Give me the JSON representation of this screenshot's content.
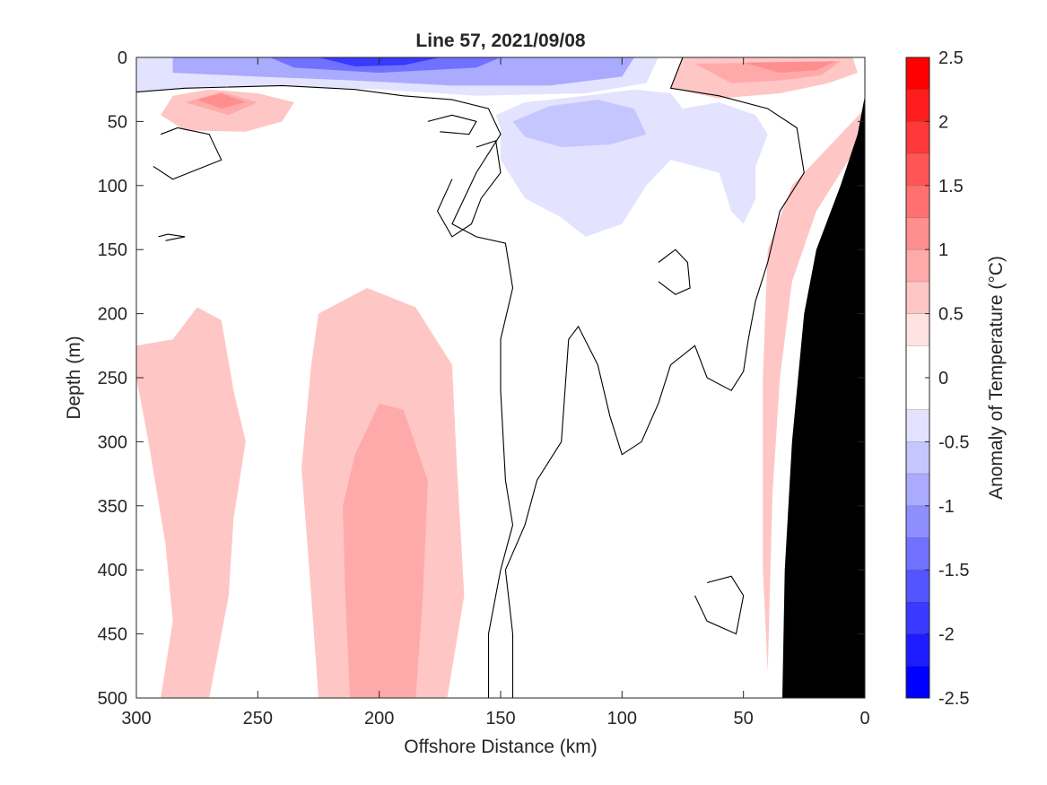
{
  "chart_data": {
    "type": "heatmap",
    "title": "Line 57, 2021/09/08",
    "xlabel": "Offshore Distance (km)",
    "ylabel": "Depth (m)",
    "xlim": [
      300,
      0
    ],
    "ylim": [
      0,
      500
    ],
    "x_reversed": true,
    "y_reversed": true,
    "x_ticks": [
      300,
      250,
      200,
      150,
      100,
      50,
      0
    ],
    "y_ticks": [
      0,
      50,
      100,
      150,
      200,
      250,
      300,
      350,
      400,
      450,
      500
    ],
    "colorbar": {
      "label": "Anomaly of Temperature (°C)",
      "range": [
        -2.5,
        2.5
      ],
      "ticks": [
        2.5,
        2,
        1.5,
        1,
        0.5,
        0,
        -0.5,
        -1,
        -1.5,
        -2,
        -2.5
      ],
      "tick_labels": [
        "2.5",
        "2",
        "1.5",
        "1",
        "0.5",
        "0",
        "-0.5",
        "-1",
        "-1.5",
        "-2",
        "-2.5"
      ],
      "levels": [
        {
          "min": 2.25,
          "max": 2.5,
          "color": "#ff0000"
        },
        {
          "min": 2.0,
          "max": 2.25,
          "color": "#ff1c1c"
        },
        {
          "min": 1.75,
          "max": 2.0,
          "color": "#ff3939"
        },
        {
          "min": 1.5,
          "max": 1.75,
          "color": "#ff5555"
        },
        {
          "min": 1.25,
          "max": 1.5,
          "color": "#ff7171"
        },
        {
          "min": 1.0,
          "max": 1.25,
          "color": "#ff8e8e"
        },
        {
          "min": 0.75,
          "max": 1.0,
          "color": "#ffaaaa"
        },
        {
          "min": 0.5,
          "max": 0.75,
          "color": "#ffc6c6"
        },
        {
          "min": 0.25,
          "max": 0.5,
          "color": "#ffe3e3"
        },
        {
          "min": -0.25,
          "max": 0.25,
          "color": "#ffffff"
        },
        {
          "min": -0.5,
          "max": -0.25,
          "color": "#e3e3ff"
        },
        {
          "min": -0.75,
          "max": -0.5,
          "color": "#c6c6ff"
        },
        {
          "min": -1.0,
          "max": -0.75,
          "color": "#aaaaff"
        },
        {
          "min": -1.25,
          "max": -1.0,
          "color": "#8e8eff"
        },
        {
          "min": -1.5,
          "max": -1.25,
          "color": "#7171ff"
        },
        {
          "min": -1.75,
          "max": -1.5,
          "color": "#5555ff"
        },
        {
          "min": -2.0,
          "max": -1.75,
          "color": "#3939ff"
        },
        {
          "min": -2.25,
          "max": -2.0,
          "color": "#1c1cff"
        },
        {
          "min": -2.5,
          "max": -2.25,
          "color": "#0000ff"
        }
      ]
    },
    "regions": [
      {
        "name": "surface-cold-band",
        "level": -0.5,
        "points": [
          [
            300,
            0
          ],
          [
            85,
            0
          ],
          [
            90,
            20
          ],
          [
            115,
            28
          ],
          [
            160,
            30
          ],
          [
            200,
            25
          ],
          [
            240,
            22
          ],
          [
            280,
            24
          ],
          [
            300,
            27
          ]
        ]
      },
      {
        "name": "surface-cold-band",
        "level": -1.0,
        "points": [
          [
            285,
            0
          ],
          [
            95,
            0
          ],
          [
            100,
            15
          ],
          [
            130,
            22
          ],
          [
            170,
            22
          ],
          [
            210,
            18
          ],
          [
            250,
            15
          ],
          [
            285,
            12
          ]
        ]
      },
      {
        "name": "surface-cold-band",
        "level": -1.5,
        "points": [
          [
            245,
            0
          ],
          [
            150,
            0
          ],
          [
            160,
            8
          ],
          [
            200,
            12
          ],
          [
            235,
            8
          ]
        ]
      },
      {
        "name": "surface-cold-band",
        "level": -2.0,
        "points": [
          [
            225,
            0
          ],
          [
            175,
            0
          ],
          [
            190,
            6
          ],
          [
            210,
            7
          ]
        ]
      },
      {
        "name": "mid-cold-patch",
        "level": -0.5,
        "points": [
          [
            150,
            55
          ],
          [
            152,
            45
          ],
          [
            140,
            35
          ],
          [
            115,
            30
          ],
          [
            95,
            25
          ],
          [
            80,
            28
          ],
          [
            75,
            40
          ],
          [
            60,
            35
          ],
          [
            45,
            45
          ],
          [
            40,
            60
          ],
          [
            45,
            85
          ],
          [
            45,
            110
          ],
          [
            50,
            130
          ],
          [
            55,
            120
          ],
          [
            60,
            90
          ],
          [
            80,
            80
          ],
          [
            90,
            100
          ],
          [
            100,
            130
          ],
          [
            115,
            140
          ],
          [
            125,
            125
          ],
          [
            140,
            110
          ],
          [
            150,
            80
          ]
        ]
      },
      {
        "name": "mid-cold-patch",
        "level": -0.75,
        "points": [
          [
            145,
            50
          ],
          [
            130,
            38
          ],
          [
            110,
            33
          ],
          [
            95,
            40
          ],
          [
            90,
            60
          ],
          [
            105,
            68
          ],
          [
            125,
            70
          ],
          [
            140,
            62
          ]
        ]
      },
      {
        "name": "nearshore-warm-surface",
        "level": 0.5,
        "points": [
          [
            75,
            0
          ],
          [
            5,
            0
          ],
          [
            3,
            12
          ],
          [
            15,
            20
          ],
          [
            35,
            28
          ],
          [
            60,
            32
          ],
          [
            80,
            24
          ]
        ]
      },
      {
        "name": "nearshore-warm-surface",
        "level": 0.75,
        "points": [
          [
            70,
            5
          ],
          [
            10,
            3
          ],
          [
            18,
            14
          ],
          [
            35,
            18
          ],
          [
            55,
            20
          ]
        ]
      },
      {
        "name": "nearshore-warm-surface",
        "level": 1.0,
        "points": [
          [
            50,
            4
          ],
          [
            12,
            3
          ],
          [
            20,
            10
          ],
          [
            35,
            12
          ]
        ]
      },
      {
        "name": "offshore-warm-subsurface",
        "level": 0.5,
        "points": [
          [
            290,
            45
          ],
          [
            285,
            30
          ],
          [
            270,
            25
          ],
          [
            250,
            28
          ],
          [
            235,
            35
          ],
          [
            240,
            50
          ],
          [
            255,
            58
          ],
          [
            280,
            57
          ]
        ]
      },
      {
        "name": "offshore-warm-subsurface",
        "level": 0.75,
        "points": [
          [
            280,
            35
          ],
          [
            265,
            27
          ],
          [
            250,
            35
          ],
          [
            262,
            45
          ]
        ]
      },
      {
        "name": "offshore-warm-subsurface",
        "level": 1.0,
        "points": [
          [
            275,
            33
          ],
          [
            265,
            28
          ],
          [
            255,
            35
          ],
          [
            265,
            40
          ]
        ]
      },
      {
        "name": "deep-warm-column-west",
        "level": 0.5,
        "points": [
          [
            300,
            225
          ],
          [
            285,
            220
          ],
          [
            275,
            195
          ],
          [
            265,
            205
          ],
          [
            260,
            260
          ],
          [
            255,
            300
          ],
          [
            260,
            360
          ],
          [
            262,
            420
          ],
          [
            270,
            500
          ],
          [
            290,
            500
          ],
          [
            285,
            440
          ],
          [
            288,
            380
          ],
          [
            295,
            300
          ],
          [
            300,
            250
          ]
        ]
      },
      {
        "name": "deep-warm-column-center",
        "level": 0.5,
        "points": [
          [
            225,
            200
          ],
          [
            205,
            180
          ],
          [
            185,
            195
          ],
          [
            170,
            240
          ],
          [
            168,
            320
          ],
          [
            165,
            420
          ],
          [
            172,
            500
          ],
          [
            225,
            500
          ],
          [
            228,
            420
          ],
          [
            232,
            320
          ],
          [
            228,
            240
          ]
        ]
      },
      {
        "name": "deep-warm-column-center",
        "level": 0.75,
        "points": [
          [
            210,
            310
          ],
          [
            200,
            270
          ],
          [
            190,
            275
          ],
          [
            180,
            330
          ],
          [
            182,
            420
          ],
          [
            185,
            500
          ],
          [
            212,
            500
          ],
          [
            214,
            420
          ],
          [
            215,
            350
          ]
        ]
      },
      {
        "name": "nearshore-warm-slope",
        "level": 0.5,
        "points": [
          [
            38,
            340
          ],
          [
            35,
            250
          ],
          [
            30,
            175
          ],
          [
            20,
            120
          ],
          [
            10,
            90
          ],
          [
            0,
            60
          ],
          [
            0,
            40
          ],
          [
            20,
            80
          ],
          [
            30,
            100
          ],
          [
            40,
            150
          ],
          [
            42,
            250
          ],
          [
            42,
            400
          ],
          [
            40,
            480
          ]
        ]
      }
    ],
    "contour_zero": [
      [
        [
          300,
          27
        ],
        [
          280,
          24
        ],
        [
          240,
          22
        ],
        [
          210,
          25
        ],
        [
          190,
          30
        ],
        [
          170,
          33
        ],
        [
          155,
          40
        ],
        [
          150,
          60
        ],
        [
          160,
          90
        ],
        [
          170,
          130
        ],
        [
          160,
          140
        ],
        [
          148,
          145
        ],
        [
          145,
          180
        ],
        [
          150,
          220
        ],
        [
          150,
          260
        ],
        [
          148,
          330
        ],
        [
          145,
          365
        ],
        [
          150,
          400
        ],
        [
          155,
          450
        ],
        [
          155,
          500
        ]
      ],
      [
        [
          145,
          500
        ],
        [
          145,
          450
        ],
        [
          148,
          400
        ],
        [
          140,
          365
        ],
        [
          135,
          330
        ],
        [
          125,
          300
        ],
        [
          122,
          220
        ],
        [
          118,
          210
        ],
        [
          110,
          240
        ],
        [
          105,
          280
        ],
        [
          100,
          310
        ],
        [
          92,
          300
        ],
        [
          85,
          270
        ],
        [
          80,
          240
        ],
        [
          70,
          225
        ],
        [
          65,
          250
        ],
        [
          55,
          260
        ],
        [
          50,
          245
        ],
        [
          48,
          220
        ],
        [
          45,
          190
        ],
        [
          40,
          160
        ],
        [
          35,
          120
        ],
        [
          25,
          90
        ],
        [
          28,
          55
        ],
        [
          40,
          40
        ],
        [
          60,
          30
        ],
        [
          80,
          24
        ],
        [
          75,
          0
        ]
      ],
      [
        [
          290,
          60
        ],
        [
          283,
          55
        ],
        [
          270,
          60
        ],
        [
          265,
          80
        ],
        [
          285,
          95
        ],
        [
          293,
          85
        ]
      ],
      [
        [
          291,
          140
        ],
        [
          287,
          138
        ],
        [
          280,
          140
        ],
        [
          288,
          143
        ]
      ],
      [
        [
          85,
          160
        ],
        [
          78,
          150
        ],
        [
          73,
          160
        ],
        [
          72,
          180
        ],
        [
          78,
          185
        ],
        [
          85,
          175
        ]
      ],
      [
        [
          65,
          410
        ],
        [
          55,
          405
        ],
        [
          50,
          420
        ],
        [
          53,
          450
        ],
        [
          65,
          440
        ],
        [
          70,
          420
        ]
      ],
      [
        [
          180,
          50
        ],
        [
          170,
          45
        ],
        [
          160,
          50
        ],
        [
          163,
          60
        ],
        [
          175,
          58
        ]
      ],
      [
        [
          160,
          70
        ],
        [
          152,
          65
        ],
        [
          150,
          90
        ],
        [
          158,
          110
        ],
        [
          162,
          130
        ],
        [
          170,
          140
        ],
        [
          176,
          120
        ],
        [
          170,
          95
        ]
      ]
    ],
    "land": [
      [
        0,
        30
      ],
      [
        3,
        60
      ],
      [
        10,
        100
      ],
      [
        20,
        150
      ],
      [
        25,
        200
      ],
      [
        30,
        300
      ],
      [
        33,
        400
      ],
      [
        34,
        500
      ],
      [
        0,
        500
      ]
    ]
  }
}
